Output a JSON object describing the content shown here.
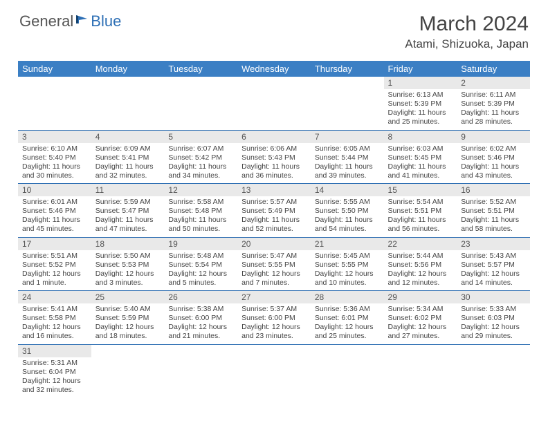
{
  "brand": {
    "part1": "General",
    "part2": "Blue"
  },
  "title": "March 2024",
  "location": "Atami, Shizuoka, Japan",
  "colors": {
    "header_bg": "#3b7fc4",
    "header_text": "#ffffff",
    "daynum_bg": "#e9e9e9",
    "row_border": "#2f6fb3",
    "brand_blue": "#2d6fb5",
    "text": "#444444"
  },
  "weekdays": [
    "Sunday",
    "Monday",
    "Tuesday",
    "Wednesday",
    "Thursday",
    "Friday",
    "Saturday"
  ],
  "weeks": [
    [
      null,
      null,
      null,
      null,
      null,
      {
        "n": "1",
        "sunrise": "6:13 AM",
        "sunset": "5:39 PM",
        "daylight": "11 hours and 25 minutes."
      },
      {
        "n": "2",
        "sunrise": "6:11 AM",
        "sunset": "5:39 PM",
        "daylight": "11 hours and 28 minutes."
      }
    ],
    [
      {
        "n": "3",
        "sunrise": "6:10 AM",
        "sunset": "5:40 PM",
        "daylight": "11 hours and 30 minutes."
      },
      {
        "n": "4",
        "sunrise": "6:09 AM",
        "sunset": "5:41 PM",
        "daylight": "11 hours and 32 minutes."
      },
      {
        "n": "5",
        "sunrise": "6:07 AM",
        "sunset": "5:42 PM",
        "daylight": "11 hours and 34 minutes."
      },
      {
        "n": "6",
        "sunrise": "6:06 AM",
        "sunset": "5:43 PM",
        "daylight": "11 hours and 36 minutes."
      },
      {
        "n": "7",
        "sunrise": "6:05 AM",
        "sunset": "5:44 PM",
        "daylight": "11 hours and 39 minutes."
      },
      {
        "n": "8",
        "sunrise": "6:03 AM",
        "sunset": "5:45 PM",
        "daylight": "11 hours and 41 minutes."
      },
      {
        "n": "9",
        "sunrise": "6:02 AM",
        "sunset": "5:46 PM",
        "daylight": "11 hours and 43 minutes."
      }
    ],
    [
      {
        "n": "10",
        "sunrise": "6:01 AM",
        "sunset": "5:46 PM",
        "daylight": "11 hours and 45 minutes."
      },
      {
        "n": "11",
        "sunrise": "5:59 AM",
        "sunset": "5:47 PM",
        "daylight": "11 hours and 47 minutes."
      },
      {
        "n": "12",
        "sunrise": "5:58 AM",
        "sunset": "5:48 PM",
        "daylight": "11 hours and 50 minutes."
      },
      {
        "n": "13",
        "sunrise": "5:57 AM",
        "sunset": "5:49 PM",
        "daylight": "11 hours and 52 minutes."
      },
      {
        "n": "14",
        "sunrise": "5:55 AM",
        "sunset": "5:50 PM",
        "daylight": "11 hours and 54 minutes."
      },
      {
        "n": "15",
        "sunrise": "5:54 AM",
        "sunset": "5:51 PM",
        "daylight": "11 hours and 56 minutes."
      },
      {
        "n": "16",
        "sunrise": "5:52 AM",
        "sunset": "5:51 PM",
        "daylight": "11 hours and 58 minutes."
      }
    ],
    [
      {
        "n": "17",
        "sunrise": "5:51 AM",
        "sunset": "5:52 PM",
        "daylight": "12 hours and 1 minute."
      },
      {
        "n": "18",
        "sunrise": "5:50 AM",
        "sunset": "5:53 PM",
        "daylight": "12 hours and 3 minutes."
      },
      {
        "n": "19",
        "sunrise": "5:48 AM",
        "sunset": "5:54 PM",
        "daylight": "12 hours and 5 minutes."
      },
      {
        "n": "20",
        "sunrise": "5:47 AM",
        "sunset": "5:55 PM",
        "daylight": "12 hours and 7 minutes."
      },
      {
        "n": "21",
        "sunrise": "5:45 AM",
        "sunset": "5:55 PM",
        "daylight": "12 hours and 10 minutes."
      },
      {
        "n": "22",
        "sunrise": "5:44 AM",
        "sunset": "5:56 PM",
        "daylight": "12 hours and 12 minutes."
      },
      {
        "n": "23",
        "sunrise": "5:43 AM",
        "sunset": "5:57 PM",
        "daylight": "12 hours and 14 minutes."
      }
    ],
    [
      {
        "n": "24",
        "sunrise": "5:41 AM",
        "sunset": "5:58 PM",
        "daylight": "12 hours and 16 minutes."
      },
      {
        "n": "25",
        "sunrise": "5:40 AM",
        "sunset": "5:59 PM",
        "daylight": "12 hours and 18 minutes."
      },
      {
        "n": "26",
        "sunrise": "5:38 AM",
        "sunset": "6:00 PM",
        "daylight": "12 hours and 21 minutes."
      },
      {
        "n": "27",
        "sunrise": "5:37 AM",
        "sunset": "6:00 PM",
        "daylight": "12 hours and 23 minutes."
      },
      {
        "n": "28",
        "sunrise": "5:36 AM",
        "sunset": "6:01 PM",
        "daylight": "12 hours and 25 minutes."
      },
      {
        "n": "29",
        "sunrise": "5:34 AM",
        "sunset": "6:02 PM",
        "daylight": "12 hours and 27 minutes."
      },
      {
        "n": "30",
        "sunrise": "5:33 AM",
        "sunset": "6:03 PM",
        "daylight": "12 hours and 29 minutes."
      }
    ],
    [
      {
        "n": "31",
        "sunrise": "5:31 AM",
        "sunset": "6:04 PM",
        "daylight": "12 hours and 32 minutes."
      },
      null,
      null,
      null,
      null,
      null,
      null
    ]
  ],
  "labels": {
    "sunrise_prefix": "Sunrise: ",
    "sunset_prefix": "Sunset: ",
    "daylight_prefix": "Daylight: "
  }
}
